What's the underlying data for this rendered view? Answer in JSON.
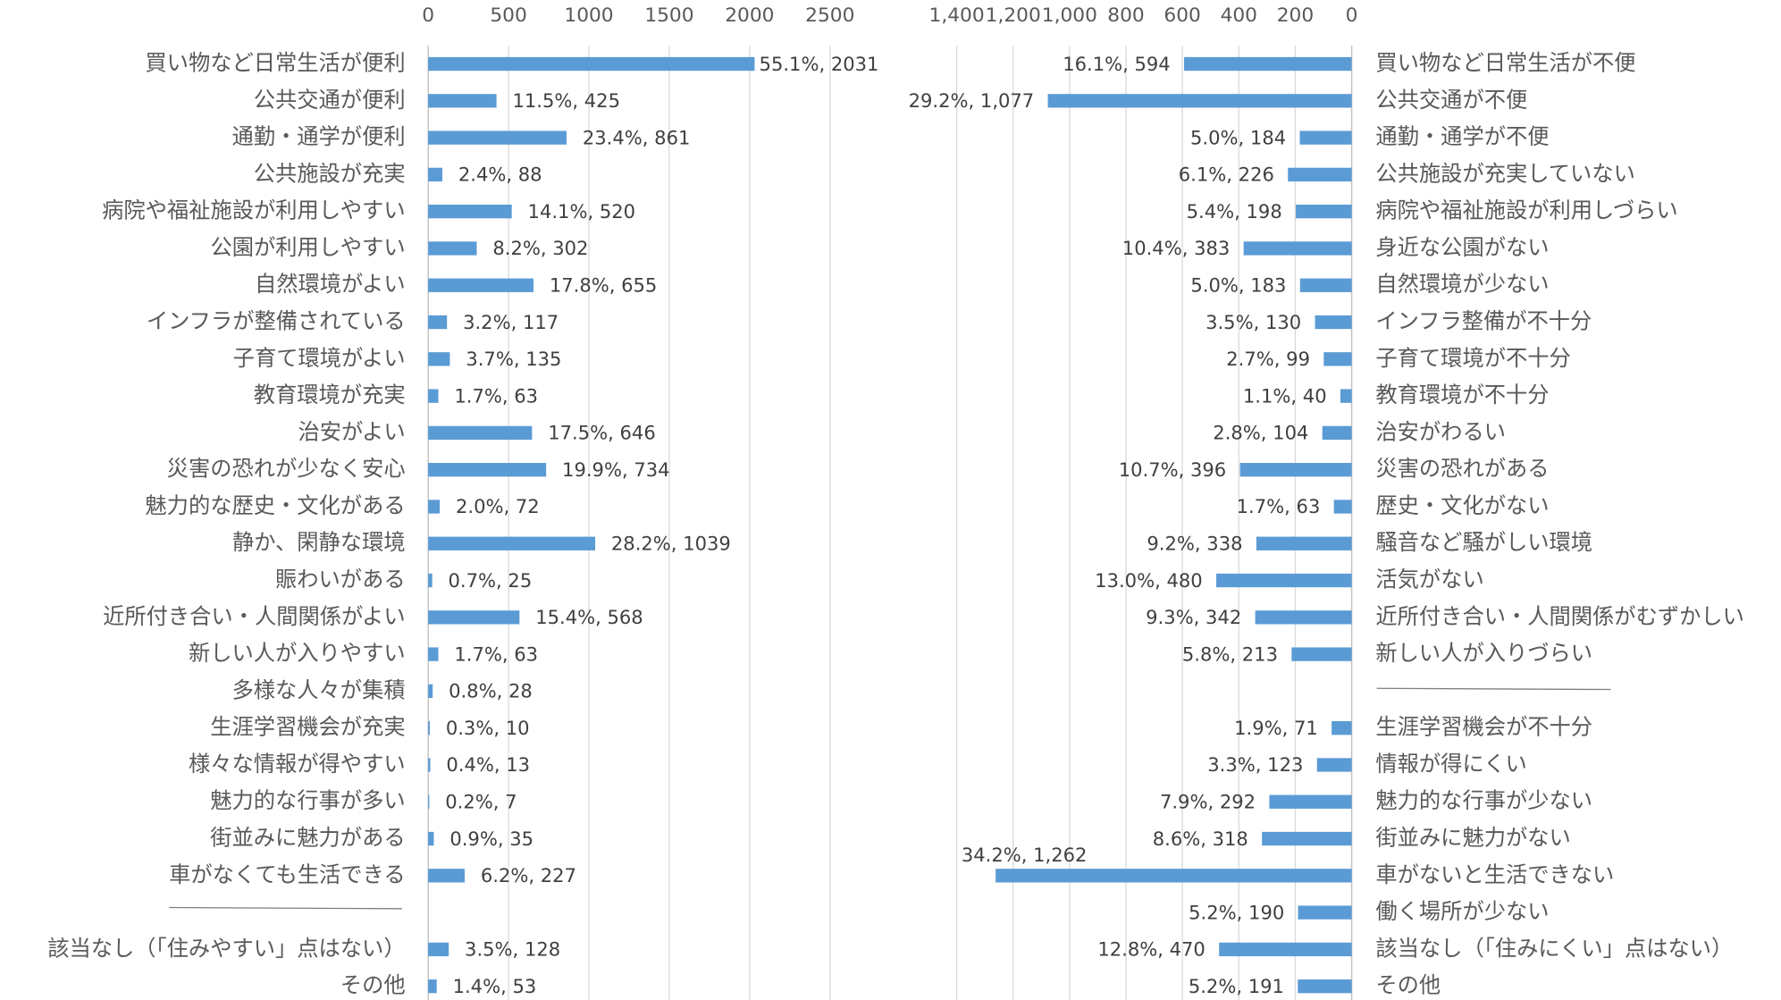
{
  "chart_data": [
    {
      "type": "bar",
      "orientation": "horizontal",
      "color": "#5b9bd5",
      "grid": true,
      "categories": [
        "買い物など日常生活が便利",
        "公共交通が便利",
        "通勤・通学が便利",
        "公共施設が充実",
        "病院や福祉施設が利用しやすい",
        "公園が利用しやすい",
        "自然環境がよい",
        "インフラが整備されている",
        "子育て環境がよい",
        "教育環境が充実",
        "治安がよい",
        "災害の恐れが少なく安心",
        "魅力的な歴史・文化がある",
        "静か、閑静な環境",
        "賑わいがある",
        "近所付き合い・人間関係がよい",
        "新しい人が入りやすい",
        "多様な人々が集積",
        "生涯学習機会が充実",
        "様々な情報が得やすい",
        "魅力的な行事が多い",
        "街並みに魅力がある",
        "車がなくても生活できる",
        null,
        "該当なし（「住みやすい」点はない）",
        "その他"
      ],
      "values": [
        2031,
        425,
        861,
        88,
        520,
        302,
        655,
        117,
        135,
        63,
        646,
        734,
        72,
        1039,
        25,
        568,
        63,
        28,
        10,
        13,
        7,
        35,
        227,
        null,
        128,
        53
      ],
      "value_labels": [
        "55.1%, 2031",
        "11.5%, 425",
        "23.4%, 861",
        "2.4%, 88",
        "14.1%, 520",
        "8.2%, 302",
        "17.8%, 655",
        "3.2%, 117",
        "3.7%, 135",
        "1.7%, 63",
        "17.5%, 646",
        "19.9%, 734",
        "2.0%, 72",
        "28.2%, 1039",
        "0.7%, 25",
        "15.4%, 568",
        "1.7%, 63",
        "0.8%, 28",
        "0.3%, 10",
        "0.4%, 13",
        "0.2%, 7",
        "0.9%, 35",
        "6.2%, 227",
        null,
        "3.5%, 128",
        "1.4%, 53"
      ],
      "xlim": [
        0,
        2500
      ],
      "xticks": [
        0,
        500,
        1000,
        1500,
        2000,
        2500
      ]
    },
    {
      "type": "bar",
      "orientation": "horizontal",
      "color": "#5b9bd5",
      "grid": true,
      "x_reversed": true,
      "categories": [
        "買い物など日常生活が不便",
        "公共交通が不便",
        "通勤・通学が不便",
        "公共施設が充実していない",
        "病院や福祉施設が利用しづらい",
        "身近な公園がない",
        "自然環境が少ない",
        "インフラ整備が不十分",
        "子育て環境が不十分",
        "教育環境が不十分",
        "治安がわるい",
        "災害の恐れがある",
        "歴史・文化がない",
        "騒音など騒がしい環境",
        "活気がない",
        "近所付き合い・人間関係がむずかしい",
        "新しい人が入りづらい",
        null,
        "生涯学習機会が不十分",
        "情報が得にくい",
        "魅力的な行事が少ない",
        "街並みに魅力がない",
        "車がないと生活できない",
        "働く場所が少ない",
        "該当なし（「住みにくい」点はない）",
        "その他"
      ],
      "values": [
        594,
        1077,
        184,
        226,
        198,
        383,
        183,
        130,
        99,
        40,
        104,
        396,
        63,
        338,
        480,
        342,
        213,
        null,
        71,
        123,
        292,
        318,
        1262,
        190,
        470,
        191
      ],
      "value_labels": [
        "16.1%, 594",
        "29.2%, 1,077",
        "5.0%, 184",
        "6.1%, 226",
        "5.4%, 198",
        "10.4%, 383",
        "5.0%, 183",
        "3.5%, 130",
        "2.7%, 99",
        "1.1%, 40",
        "2.8%, 104",
        "10.7%, 396",
        "1.7%, 63",
        "9.2%, 338",
        "13.0%, 480",
        "9.3%, 342",
        "5.8%, 213",
        null,
        "1.9%, 71",
        "3.3%, 123",
        "7.9%, 292",
        "8.6%, 318",
        "34.2%, 1,262",
        "5.2%, 190",
        "12.8%, 470",
        "5.2%, 191"
      ],
      "xlim": [
        0,
        1400
      ],
      "xticks": [
        0,
        200,
        400,
        600,
        800,
        {
          "value": 1000,
          "label": "1,000"
        },
        {
          "value": 1200,
          "label": "1,200"
        },
        {
          "value": 1400,
          "label": "1,400"
        }
      ]
    }
  ]
}
